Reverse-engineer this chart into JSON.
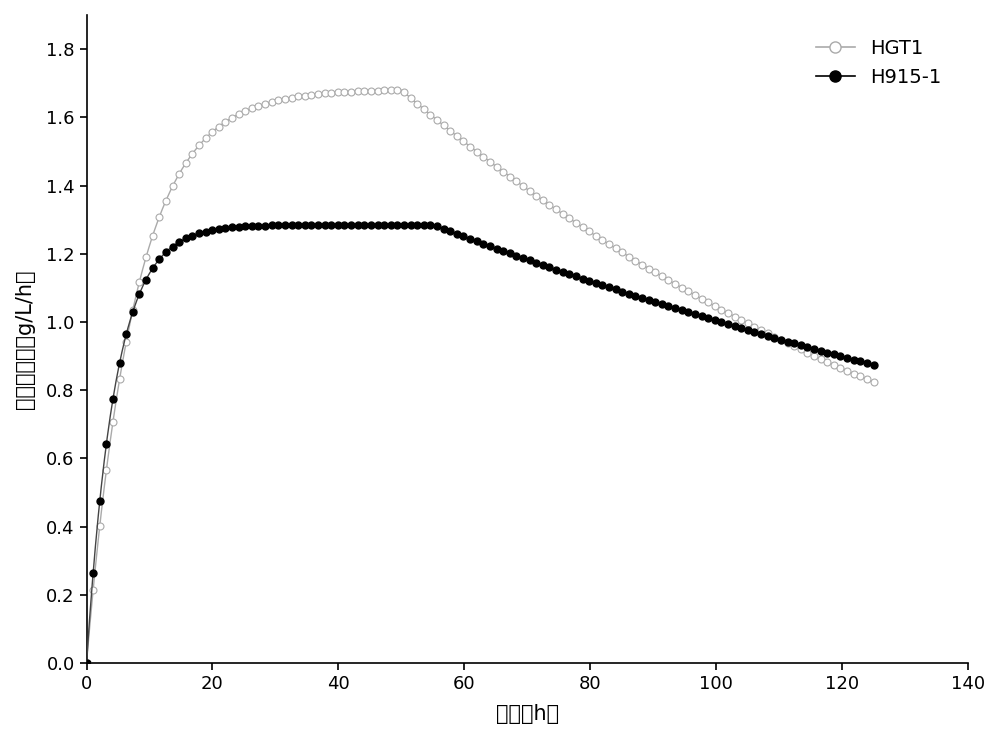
{
  "xlabel": "时间（h）",
  "ylabel": "比产酸速率（g/L/h）",
  "xlim": [
    0,
    140
  ],
  "ylim": [
    0.0,
    1.9
  ],
  "xticks": [
    0,
    20,
    40,
    60,
    80,
    100,
    120,
    140
  ],
  "yticks": [
    0.0,
    0.2,
    0.4,
    0.6,
    0.8,
    1.0,
    1.2,
    1.4,
    1.6,
    1.8
  ],
  "hgt1_color": "#aaaaaa",
  "h915_color": "#000000",
  "marker_size_open": 5,
  "marker_size_filled": 5,
  "n_markers": 120,
  "linewidth": 1.0
}
